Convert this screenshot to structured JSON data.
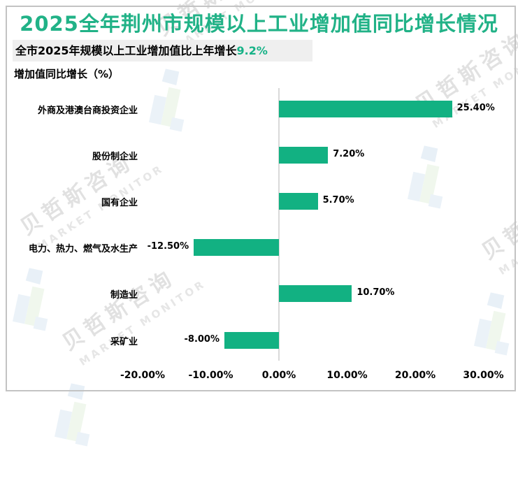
{
  "page": {
    "title": "2025全年荆州市规模以上工业增加值同比增长情况",
    "subtitle_prefix": "全市2025年规模以上工业增加值比上年增长",
    "subtitle_highlight": "9.2%",
    "chart_axis_title": "增加值同比增长（%）"
  },
  "chart_data": {
    "type": "bar",
    "orientation": "horizontal",
    "title": "增加值同比增长（%）",
    "categories": [
      "外商及港澳台商投资企业",
      "股份制企业",
      "国有企业",
      "电力、热力、燃气及水生产",
      "制造业",
      "采矿业"
    ],
    "values": [
      25.4,
      7.2,
      5.7,
      -12.5,
      10.7,
      -8.0
    ],
    "value_labels": [
      "25.40%",
      "7.20%",
      "5.70%",
      "-12.50%",
      "10.70%",
      "-8.00%"
    ],
    "x_ticks": {
      "labels": [
        "-20.00%",
        "-10.00%",
        "0.00%",
        "10.00%",
        "20.00%",
        "30.00%"
      ],
      "values": [
        -20,
        -10,
        0,
        10,
        20,
        30
      ]
    },
    "xlim": [
      -20,
      30
    ],
    "grid": false,
    "legend_position": "none",
    "bar_color": "#12b182"
  },
  "watermark": {
    "cn_text": "贝哲斯咨询",
    "en_text": "MARKET MONITOR"
  },
  "colors": {
    "title_green": "#21b287",
    "highlight_green": "#16b287",
    "bar_green": "#12b182",
    "subtitle_bg": "#efefef",
    "frame_border": "#c3c3c3",
    "axis_line": "#d9d9d9",
    "text": "#000000"
  }
}
